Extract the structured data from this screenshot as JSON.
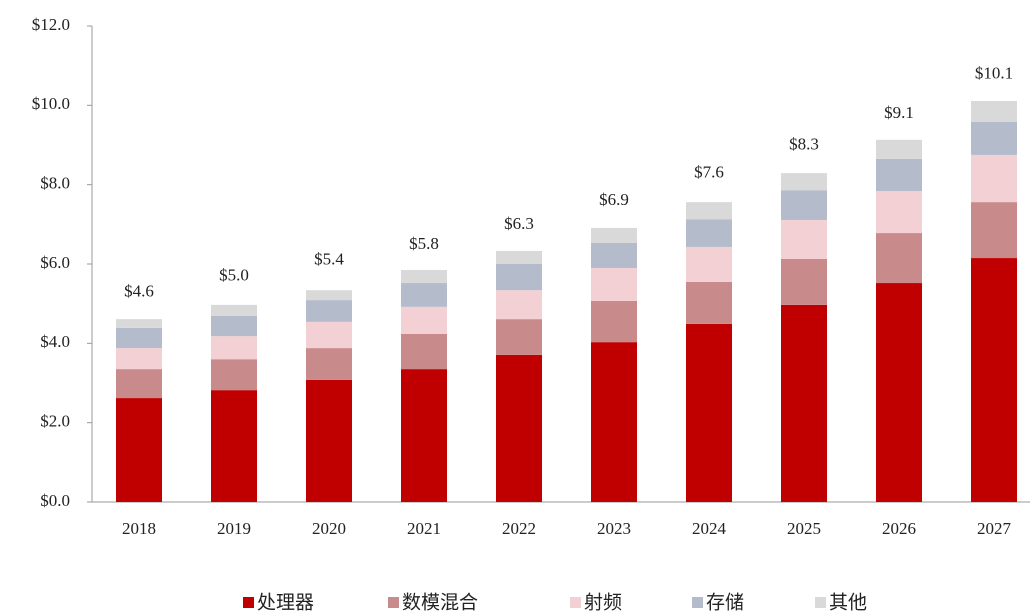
{
  "chart_data": {
    "type": "stacked_bar",
    "categories": [
      "2018",
      "2019",
      "2020",
      "2021",
      "2022",
      "2023",
      "2024",
      "2025",
      "2026",
      "2027"
    ],
    "series": [
      {
        "name": "处理器",
        "color": "#c00000",
        "values": [
          2.62,
          2.82,
          3.08,
          3.35,
          3.71,
          4.03,
          4.49,
          4.97,
          5.52,
          6.15
        ]
      },
      {
        "name": "数模混合",
        "color": "#c98a8c",
        "values": [
          0.73,
          0.78,
          0.8,
          0.89,
          0.9,
          1.04,
          1.06,
          1.16,
          1.26,
          1.41
        ]
      },
      {
        "name": "射频",
        "color": "#f2d0d3",
        "values": [
          0.53,
          0.58,
          0.66,
          0.68,
          0.73,
          0.83,
          0.88,
          0.98,
          1.06,
          1.19
        ]
      },
      {
        "name": "存储",
        "color": "#b4bccb",
        "values": [
          0.51,
          0.51,
          0.55,
          0.6,
          0.66,
          0.63,
          0.7,
          0.75,
          0.81,
          0.83
        ]
      },
      {
        "name": "其他",
        "color": "#d9d9d9",
        "values": [
          0.22,
          0.28,
          0.25,
          0.33,
          0.33,
          0.38,
          0.43,
          0.43,
          0.48,
          0.53
        ]
      }
    ],
    "totals": [
      4.6,
      5.0,
      5.4,
      5.8,
      6.3,
      6.9,
      7.6,
      8.3,
      9.1,
      10.1
    ],
    "total_labels": [
      "$4.6",
      "$5.0",
      "$5.4",
      "$5.8",
      "$6.3",
      "$6.9",
      "$7.6",
      "$8.3",
      "$9.1",
      "$10.1"
    ],
    "ylim": [
      0,
      12
    ],
    "yticks": [
      {
        "value": 0,
        "label": "$0.0"
      },
      {
        "value": 2,
        "label": "$2.0"
      },
      {
        "value": 4,
        "label": "$4.0"
      },
      {
        "value": 6,
        "label": "$6.0"
      },
      {
        "value": 8,
        "label": "$8.0"
      },
      {
        "value": 10,
        "label": "$10.0"
      },
      {
        "value": 12,
        "label": "$12.0"
      }
    ],
    "legend": "bottom"
  }
}
